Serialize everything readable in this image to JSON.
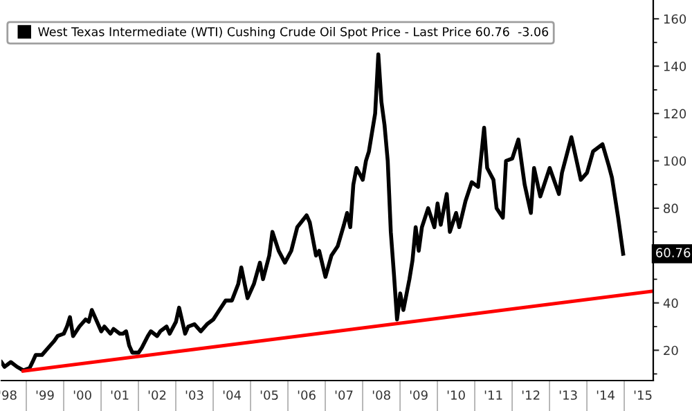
{
  "chart_data": {
    "type": "line",
    "legend": "top left",
    "grid": false,
    "marker": "none",
    "line_style": "solid",
    "xlim": [
      "1998-05-01",
      "2015-10-10"
    ],
    "ylim": [
      7.2,
      167.6
    ],
    "xticks": [
      {
        "value": "1998-07-01",
        "label": "'98"
      },
      {
        "value": "1999-07-01",
        "label": "'99"
      },
      {
        "value": "2000-07-01",
        "label": "'00"
      },
      {
        "value": "2001-07-01",
        "label": "'01"
      },
      {
        "value": "2002-07-01",
        "label": "'02"
      },
      {
        "value": "2003-07-01",
        "label": "'03"
      },
      {
        "value": "2004-07-01",
        "label": "'04"
      },
      {
        "value": "2005-07-01",
        "label": "'05"
      },
      {
        "value": "2006-07-01",
        "label": "'06"
      },
      {
        "value": "2007-07-01",
        "label": "'07"
      },
      {
        "value": "2008-07-01",
        "label": "'08"
      },
      {
        "value": "2009-07-01",
        "label": "'09"
      },
      {
        "value": "2010-07-01",
        "label": "'10"
      },
      {
        "value": "2011-07-01",
        "label": "'11"
      },
      {
        "value": "2012-07-01",
        "label": "'12"
      },
      {
        "value": "2013-07-01",
        "label": "'13"
      },
      {
        "value": "2014-07-01",
        "label": "'14"
      },
      {
        "value": "2015-07-01",
        "label": "'15"
      }
    ],
    "yticks": [
      {
        "value": 10,
        "label": null
      },
      20,
      {
        "value": 30,
        "label": null
      },
      40,
      {
        "value": 50,
        "label": null
      },
      {
        "value": 60,
        "label": null
      },
      {
        "value": 70,
        "label": null
      },
      80,
      {
        "value": 90,
        "label": null
      },
      100,
      {
        "value": 110,
        "label": null
      },
      120,
      {
        "value": 130,
        "label": null
      },
      140,
      {
        "value": 150,
        "label": null
      },
      160
    ],
    "annotations": [
      "60.76"
    ],
    "series": [
      {
        "name": "West Texas Intermediate (WTI) Cushing Crude Oil Spot Price - Last Price 60.76  -3.06",
        "color": "#000000",
        "x": [
          "1998-05",
          "1998-06",
          "1998-07",
          "1998-08",
          "1998-10",
          "1998-12",
          "1999-02",
          "1999-03",
          "1999-04",
          "1999-06",
          "1999-08",
          "1999-10",
          "1999-11",
          "2000-01",
          "2000-02",
          "2000-03",
          "2000-04",
          "2000-06",
          "2000-08",
          "2000-09",
          "2000-10",
          "2000-11",
          "2001-01",
          "2001-02",
          "2001-04",
          "2001-05",
          "2001-07",
          "2001-08",
          "2001-09",
          "2001-10",
          "2001-11",
          "2002-01",
          "2002-02",
          "2002-04",
          "2002-05",
          "2002-07",
          "2002-08",
          "2002-10",
          "2002-11",
          "2003-01",
          "2003-02",
          "2003-04",
          "2003-05",
          "2003-07",
          "2003-09",
          "2003-11",
          "2004-01",
          "2004-03",
          "2004-05",
          "2004-07",
          "2004-09",
          "2004-10",
          "2004-12",
          "2005-02",
          "2005-04",
          "2005-05",
          "2005-07",
          "2005-08",
          "2005-10",
          "2005-12",
          "2006-02",
          "2006-04",
          "2006-07",
          "2006-08",
          "2006-10",
          "2006-11",
          "2007-01",
          "2007-03",
          "2007-05",
          "2007-07",
          "2007-08",
          "2007-09",
          "2007-10",
          "2007-11",
          "2008-01",
          "2008-02",
          "2008-03",
          "2008-05",
          "2008-06",
          "2008-07",
          "2008-08",
          "2008-09",
          "2008-10",
          "2008-11",
          "2008-12",
          "2009-01",
          "2009-02",
          "2009-04",
          "2009-05",
          "2009-06",
          "2009-07",
          "2009-08",
          "2009-10",
          "2009-12",
          "2010-01",
          "2010-02",
          "2010-04",
          "2010-05",
          "2010-07",
          "2010-08",
          "2010-10",
          "2010-12",
          "2011-02",
          "2011-04",
          "2011-05",
          "2011-07",
          "2011-08",
          "2011-10",
          "2011-11",
          "2012-01",
          "2012-03",
          "2012-05",
          "2012-07",
          "2012-08",
          "2012-10",
          "2013-01",
          "2013-04",
          "2013-05",
          "2013-08",
          "2013-11",
          "2014-01",
          "2014-03",
          "2014-06",
          "2014-08",
          "2014-09",
          "2014-11",
          "2014-12-20"
        ],
        "values": [
          15,
          13,
          14,
          15,
          13,
          11.5,
          12.5,
          15,
          18,
          18,
          21,
          24,
          26,
          27,
          30,
          34,
          26,
          30,
          33,
          32,
          37,
          34,
          28,
          30,
          27,
          29,
          27,
          27,
          28,
          22,
          19,
          19,
          21,
          26,
          28,
          26,
          28,
          30,
          27,
          32,
          38,
          27,
          30,
          31,
          28,
          31,
          33,
          37,
          41,
          41,
          48,
          55,
          42,
          48,
          57,
          50,
          60,
          70,
          62,
          57,
          62,
          72,
          77,
          74,
          60,
          62,
          51,
          60,
          64,
          73,
          78,
          72,
          90,
          97,
          92,
          100,
          104,
          120,
          145,
          125,
          115,
          100,
          70,
          52,
          33,
          44,
          37,
          50,
          58,
          72,
          62,
          72,
          80,
          72,
          82,
          73,
          86,
          70,
          78,
          72,
          83,
          91,
          89,
          114,
          97,
          92,
          80,
          76,
          100,
          101,
          109,
          90,
          78,
          97,
          85,
          97,
          86,
          95,
          110,
          92,
          95,
          104,
          107,
          98,
          93,
          76,
          60.76
        ]
      },
      {
        "color": "#ff0000",
        "x": [
          "1998-12",
          "2015-10-10"
        ],
        "values": [
          11.2,
          45
        ]
      }
    ]
  }
}
